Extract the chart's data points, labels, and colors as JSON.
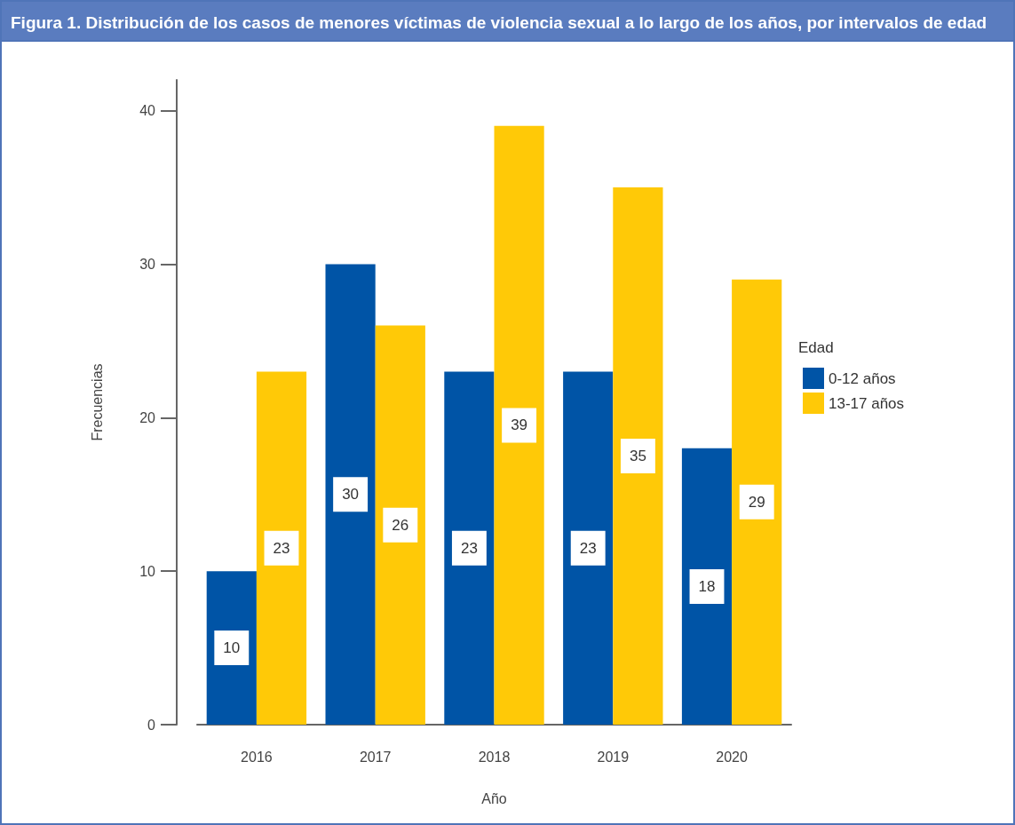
{
  "chart_data": {
    "type": "bar",
    "title": "Figura 1. Distribución de los casos de menores víctimas de violencia sexual a lo largo de los años, por intervalos de edad",
    "xlabel": "Año",
    "ylabel": "Frecuencias",
    "legend_title": "Edad",
    "categories": [
      "2016",
      "2017",
      "2018",
      "2019",
      "2020"
    ],
    "series": [
      {
        "name": "0-12 años",
        "color": "#0054a6",
        "values": [
          10,
          30,
          23,
          23,
          18
        ]
      },
      {
        "name": "13-17 años",
        "color": "#ffc907",
        "values": [
          23,
          26,
          39,
          35,
          29
        ]
      }
    ],
    "ylim": [
      0,
      42
    ],
    "yticks": [
      0,
      10,
      20,
      30,
      40
    ],
    "grid": false,
    "legend": "right",
    "data_labels": true
  }
}
